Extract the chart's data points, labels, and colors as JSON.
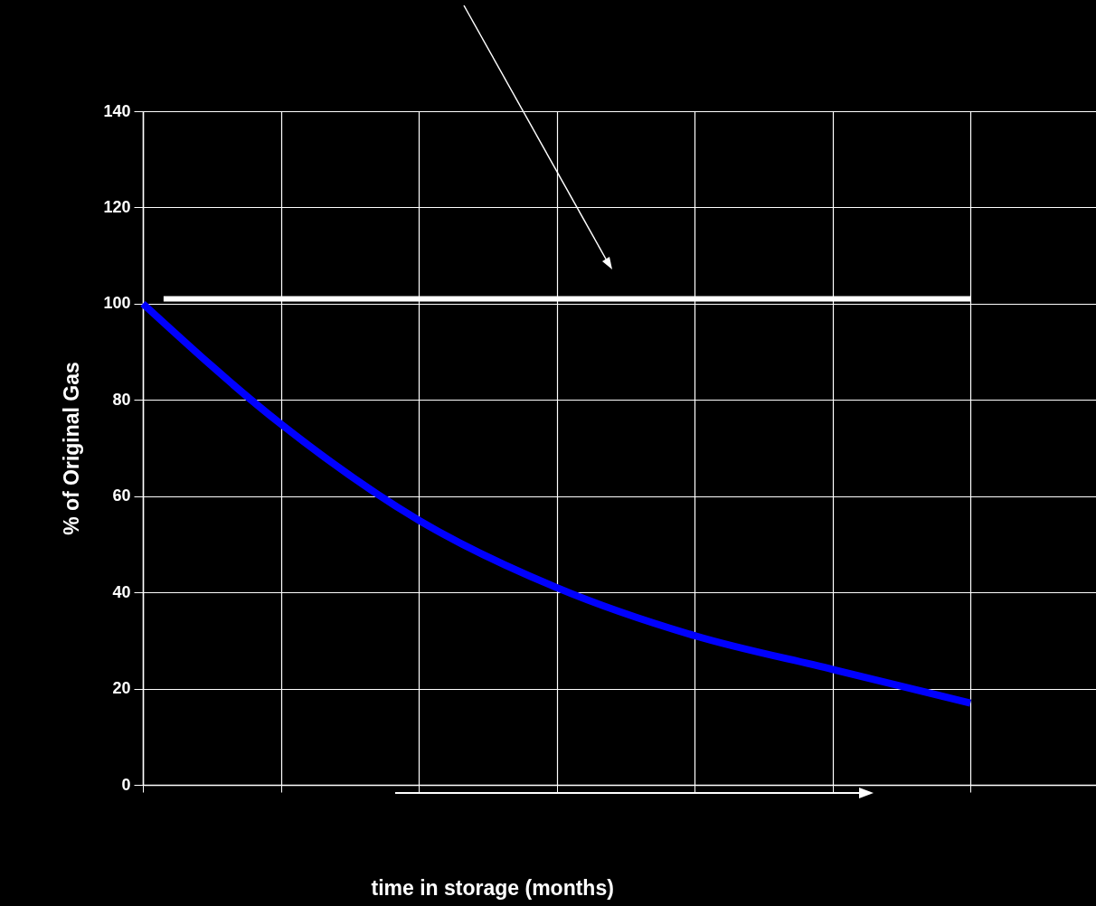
{
  "chart_data": {
    "type": "line",
    "xlabel": "time in storage (months)",
    "ylabel": "% of Original Gas",
    "categories": [
      null,
      null,
      null,
      null,
      null,
      null,
      null
    ],
    "ylim": [
      0,
      140
    ],
    "yticks": [
      0,
      20,
      40,
      60,
      80,
      100,
      120,
      140
    ],
    "grid": true,
    "marker": "none",
    "line_style": "solid",
    "tick_labels": "y",
    "series": [
      {
        "color": "#0000ff",
        "values": [
          100,
          75,
          55,
          41,
          31,
          24,
          17
        ]
      }
    ],
    "ref_lines": [
      {
        "axis": "y",
        "value": 101,
        "color": "#ffffff"
      }
    ]
  }
}
